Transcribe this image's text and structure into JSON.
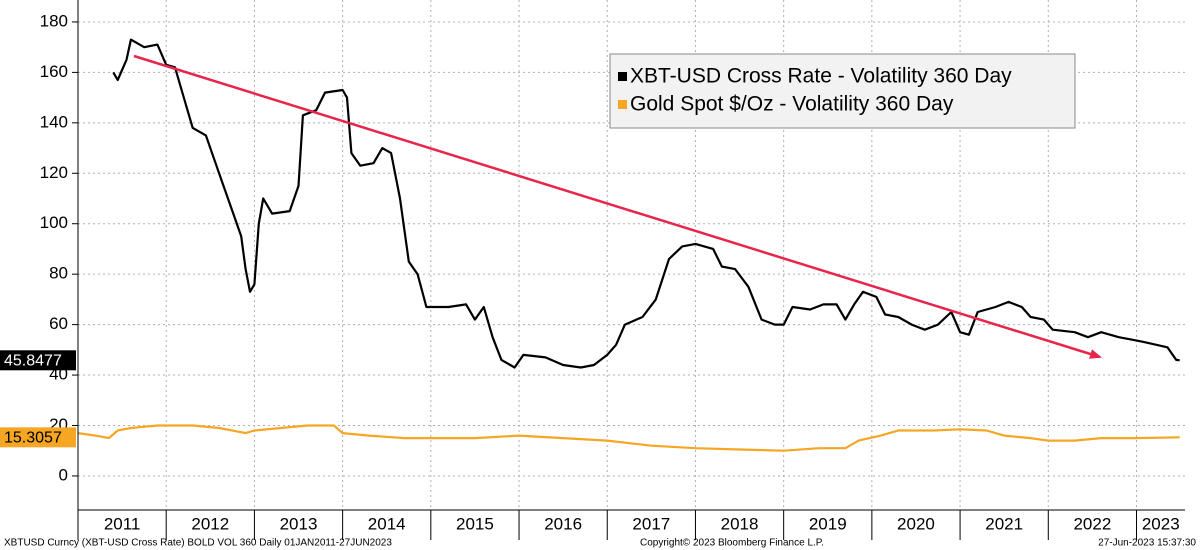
{
  "chart_data": {
    "type": "line",
    "yticks": [
      0,
      20,
      40,
      60,
      80,
      100,
      120,
      140,
      160,
      180
    ],
    "ylim": [
      -13.5,
      188.7
    ],
    "xlim": [
      2011,
      2023.55
    ],
    "xticks": [
      2011,
      2012,
      2013,
      2014,
      2015,
      2016,
      2017,
      2018,
      2019,
      2020,
      2021,
      2022,
      2023
    ],
    "grid": true,
    "legend": "upper right",
    "series": [
      {
        "name": "XBT-USD Cross Rate - Volatility 360 Day",
        "color": "#000000",
        "x": [
          2011.4,
          2011.45,
          2011.55,
          2011.6,
          2011.75,
          2011.9,
          2012.0,
          2012.1,
          2012.2,
          2012.3,
          2012.45,
          2012.55,
          2012.65,
          2012.75,
          2012.85,
          2012.9,
          2012.95,
          2013.0,
          2013.05,
          2013.1,
          2013.2,
          2013.4,
          2013.5,
          2013.55,
          2013.7,
          2013.8,
          2014.0,
          2014.05,
          2014.1,
          2014.2,
          2014.35,
          2014.45,
          2014.55,
          2014.65,
          2014.75,
          2014.85,
          2014.95,
          2015.2,
          2015.4,
          2015.5,
          2015.6,
          2015.7,
          2015.8,
          2015.95,
          2016.05,
          2016.3,
          2016.5,
          2016.7,
          2016.85,
          2017.0,
          2017.1,
          2017.2,
          2017.4,
          2017.55,
          2017.7,
          2017.85,
          2018.0,
          2018.2,
          2018.3,
          2018.45,
          2018.6,
          2018.75,
          2018.9,
          2019.0,
          2019.1,
          2019.3,
          2019.45,
          2019.6,
          2019.7,
          2019.8,
          2019.9,
          2020.05,
          2020.15,
          2020.3,
          2020.45,
          2020.6,
          2020.75,
          2020.9,
          2021.0,
          2021.1,
          2021.2,
          2021.4,
          2021.55,
          2021.7,
          2021.8,
          2021.95,
          2022.05,
          2022.3,
          2022.45,
          2022.6,
          2022.8,
          2022.95,
          2023.1,
          2023.35,
          2023.45,
          2023.49
        ],
        "values": [
          160,
          157,
          165,
          173,
          170,
          171,
          163,
          162,
          150,
          138,
          135,
          125,
          115,
          105,
          95,
          82,
          73,
          76,
          100,
          110,
          104,
          105,
          115,
          143,
          145,
          152,
          153,
          150,
          128,
          123,
          124,
          130,
          128,
          110,
          85,
          80,
          67,
          67,
          68,
          62,
          67,
          55,
          46,
          43,
          48,
          47,
          44,
          43,
          44,
          48,
          52,
          60,
          63,
          70,
          86,
          91,
          92,
          90,
          83,
          82,
          75,
          62,
          60,
          60,
          67,
          66,
          68,
          68,
          62,
          68,
          73,
          71,
          64,
          63,
          60,
          58,
          60,
          65,
          57,
          56,
          65,
          67,
          69,
          67,
          63,
          62,
          58,
          57,
          55,
          57,
          55,
          54,
          53,
          51,
          46,
          45.8477
        ]
      },
      {
        "name": "Gold Spot $/Oz - Volatility 360 Day",
        "color": "#f5a623",
        "x": [
          2011.0,
          2011.2,
          2011.35,
          2011.45,
          2011.6,
          2011.9,
          2012.3,
          2012.6,
          2012.9,
          2013.0,
          2013.3,
          2013.6,
          2013.9,
          2014.0,
          2014.3,
          2014.7,
          2015.0,
          2015.5,
          2016.0,
          2016.5,
          2017.0,
          2017.5,
          2018.0,
          2018.5,
          2019.0,
          2019.4,
          2019.7,
          2019.85,
          2020.1,
          2020.3,
          2020.7,
          2021.0,
          2021.3,
          2021.5,
          2021.8,
          2022.0,
          2022.3,
          2022.6,
          2023.0,
          2023.49
        ],
        "values": [
          17,
          16,
          15,
          18,
          19,
          20,
          20,
          19,
          17,
          18,
          19,
          20,
          20,
          17,
          16,
          15,
          15,
          15,
          16,
          15,
          14,
          12,
          11,
          10.5,
          10,
          11,
          11,
          14,
          16,
          18,
          18,
          18.5,
          18,
          16,
          15,
          14,
          14,
          15,
          15,
          15.3057
        ]
      }
    ],
    "source": "XBTUSD Curncy (XBT-USD Cross Rate) BOLD VOL 360  Daily 01JAN2011-27JUN2023",
    "copyright": "Copyright© 2023 Bloomberg Finance L.P.",
    "timestamp": "27-Jun-2023 15:37:30"
  }
}
